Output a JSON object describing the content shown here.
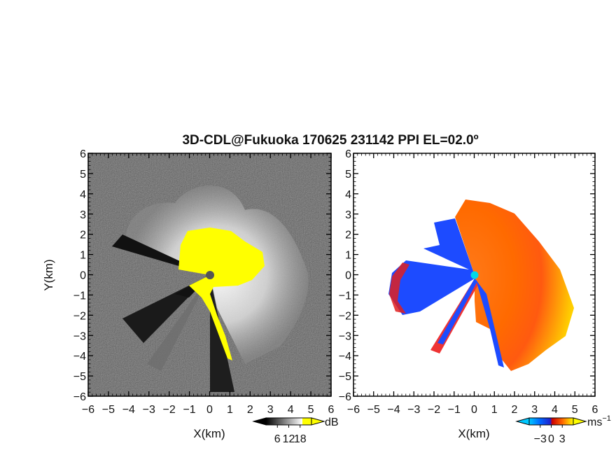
{
  "figure": {
    "title": "3D-CDL@Fukuoka 170625 231142 PPI EL=02.0º"
  },
  "chart_data": [
    {
      "type": "heatmap",
      "panel": "left",
      "quantity": "reflectivity",
      "xlabel": "X(km)",
      "ylabel": "Y(km)",
      "xlim": [
        -6,
        6
      ],
      "ylim": [
        -6,
        6
      ],
      "xticks": [
        "−6",
        "−5",
        "−4",
        "−3",
        "−2",
        "−1",
        "0",
        "1",
        "2",
        "3",
        "4",
        "5",
        "6"
      ],
      "yticks": [
        "−6",
        "−5",
        "−4",
        "−3",
        "−2",
        "−1",
        "0",
        "1",
        "2",
        "3",
        "4",
        "5",
        "6"
      ],
      "colorbar": {
        "unit": "dB",
        "ticks": [
          "6",
          "12",
          "18"
        ],
        "tick_values": [
          6,
          12,
          18
        ],
        "range": [
          0,
          24
        ],
        "colors": [
          "#000000",
          "#ffffff",
          "#ffff00"
        ]
      },
      "marker_color": "#555555",
      "saturated_color": "#ffff00"
    },
    {
      "type": "heatmap",
      "panel": "right",
      "quantity": "radial velocity",
      "xlabel": "X(km)",
      "ylabel": "",
      "xlim": [
        -6,
        6
      ],
      "ylim": [
        -6,
        6
      ],
      "xticks": [
        "−6",
        "−5",
        "−4",
        "−3",
        "−2",
        "−1",
        "0",
        "1",
        "2",
        "3",
        "4",
        "5",
        "6"
      ],
      "yticks": [
        "−6",
        "−5",
        "−4",
        "−3",
        "−2",
        "−1",
        "0",
        "1",
        "2",
        "3",
        "4",
        "5",
        "6"
      ],
      "colorbar": {
        "unit": "ms",
        "unit_sup": "−1",
        "ticks": [
          "−3",
          "0",
          "3"
        ],
        "tick_values": [
          -3,
          0,
          3
        ],
        "range": [
          -6,
          6
        ],
        "colors": [
          "#00bfff",
          "#0033ff",
          "#cc0000",
          "#ff6600",
          "#ffff00"
        ]
      },
      "marker_color": "#00d8e8",
      "approaching_color": "#1d4bff",
      "receding_color": "#ff6a1a"
    }
  ]
}
